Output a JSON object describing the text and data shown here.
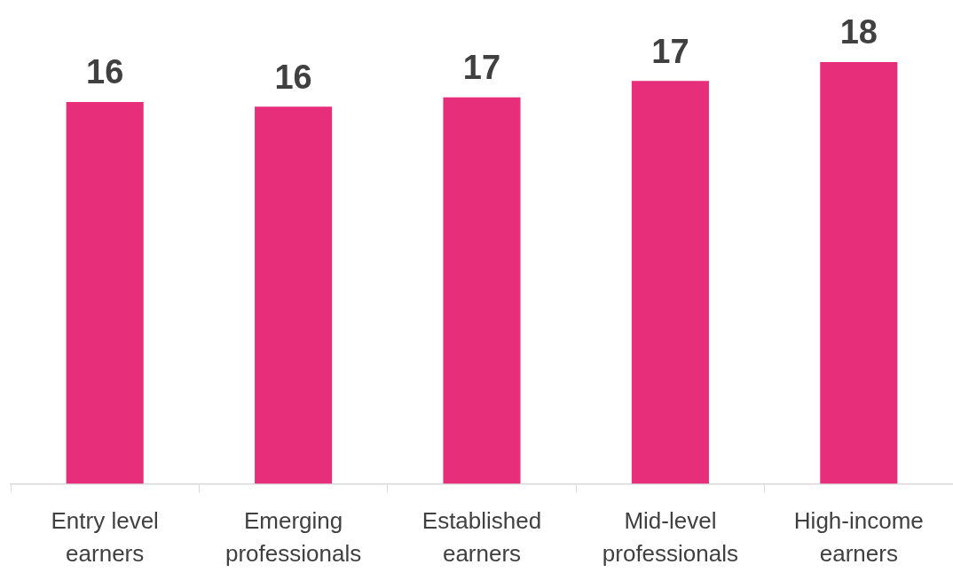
{
  "chart_data": {
    "type": "bar",
    "categories": [
      "Entry level earners",
      "Emerging professionals",
      "Established earners",
      "Mid-level professionals",
      "High-income earners"
    ],
    "values": [
      16.3,
      16.1,
      16.5,
      17.2,
      18.0
    ],
    "value_labels": [
      "16",
      "16",
      "17",
      "17",
      "18"
    ],
    "color": "#e62e7a",
    "tick_labels": "x",
    "grid": false,
    "legend": false
  }
}
